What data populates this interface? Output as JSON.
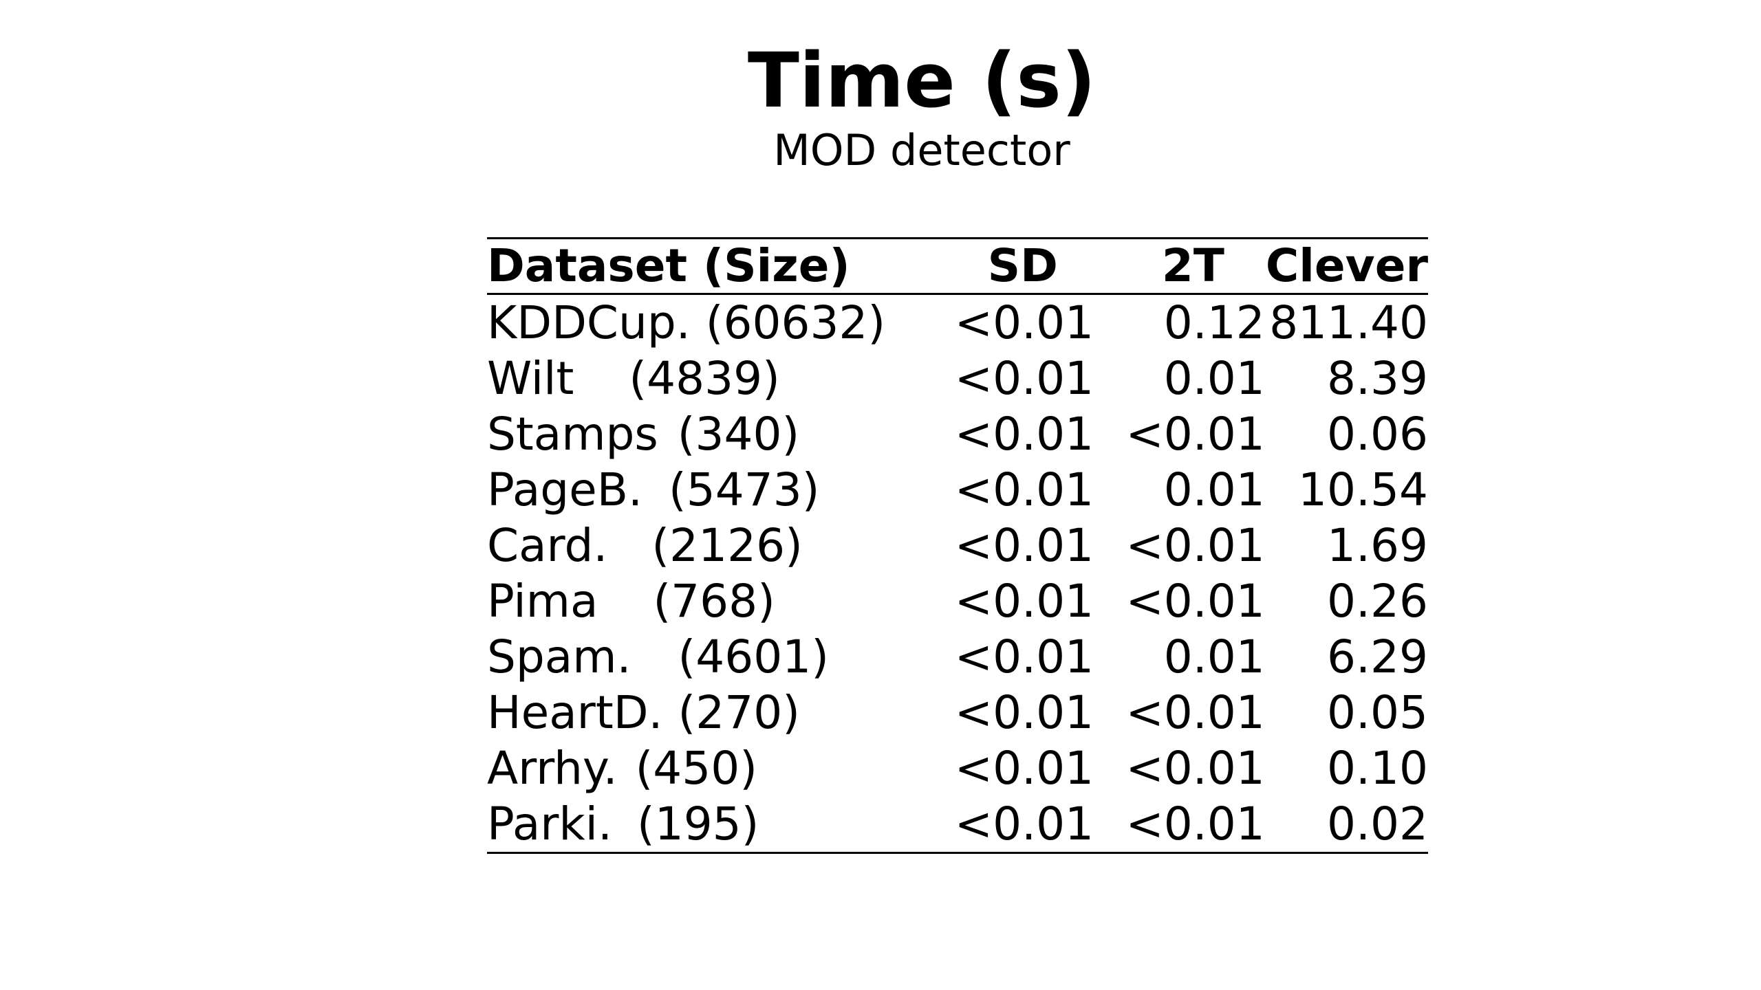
{
  "title": "Time (s)",
  "subtitle": "MOD detector",
  "table": {
    "headers": [
      "Dataset (Size)",
      "SD",
      "2T",
      "Clever"
    ],
    "rows": [
      {
        "name": "KDDCup.",
        "size": "(60632)",
        "sd": "<0.01",
        "t2": "0.12",
        "clever": "811.40"
      },
      {
        "name": "Wilt",
        "size": "(4839)",
        "sd": "<0.01",
        "t2": "0.01",
        "clever": "8.39"
      },
      {
        "name": "Stamps",
        "size": "(340)",
        "sd": "<0.01",
        "t2": "<0.01",
        "clever": "0.06"
      },
      {
        "name": "PageB.",
        "size": "(5473)",
        "sd": "<0.01",
        "t2": "0.01",
        "clever": "10.54"
      },
      {
        "name": "Card.",
        "size": "(2126)",
        "sd": "<0.01",
        "t2": "<0.01",
        "clever": "1.69"
      },
      {
        "name": "Pima",
        "size": "(768)",
        "sd": "<0.01",
        "t2": "<0.01",
        "clever": "0.26"
      },
      {
        "name": "Spam.",
        "size": "(4601)",
        "sd": "<0.01",
        "t2": "0.01",
        "clever": "6.29"
      },
      {
        "name": "HeartD.",
        "size": "(270)",
        "sd": "<0.01",
        "t2": "<0.01",
        "clever": "0.05"
      },
      {
        "name": "Arrhy.",
        "size": "(450)",
        "sd": "<0.01",
        "t2": "<0.01",
        "clever": "0.10"
      },
      {
        "name": "Parki.",
        "size": "(195)",
        "sd": "<0.01",
        "t2": "<0.01",
        "clever": "0.02"
      }
    ]
  }
}
